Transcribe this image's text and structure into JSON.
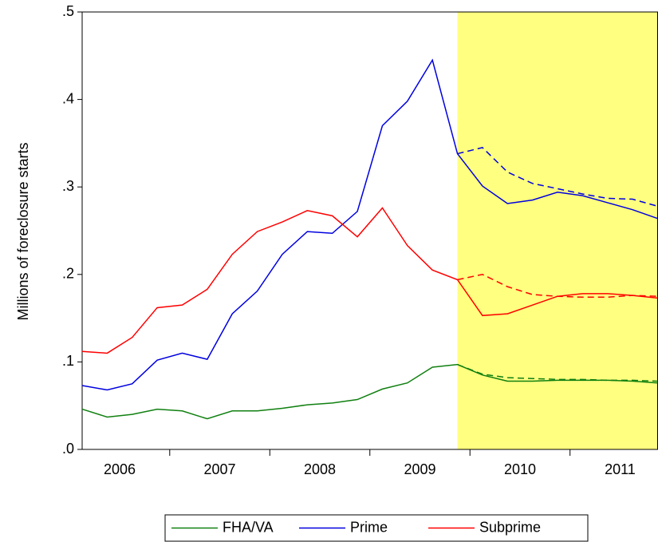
{
  "chart_data": {
    "type": "line",
    "y_label": "Millions of foreclosure starts",
    "categories": [
      null,
      "2006",
      null,
      null,
      null,
      "2007",
      null,
      null,
      null,
      "2008",
      null,
      null,
      null,
      "2009",
      null,
      null,
      null,
      "2010",
      null,
      null,
      null,
      "2011",
      null,
      null
    ],
    "ylim": [
      0,
      0.5
    ],
    "yticks": [
      {
        "value": 0,
        "label": ".0"
      },
      {
        "value": 0.1,
        "label": ".1"
      },
      {
        "value": 0.2,
        "label": ".2"
      },
      {
        "value": 0.3,
        "label": ".3"
      },
      {
        "value": 0.4,
        "label": ".4"
      },
      {
        "value": 0.5,
        "label": ".5"
      }
    ],
    "shade_color": "#ffff80",
    "series": [
      {
        "name": "FHA/VA",
        "color": "#108010",
        "values": [
          0.046,
          0.037,
          0.04,
          0.046,
          0.044,
          0.035,
          0.044,
          0.044,
          0.047,
          0.051,
          0.053,
          0.057,
          0.069,
          0.076,
          0.094,
          0.097,
          0.085,
          0.078,
          0.078,
          0.079,
          0.079,
          0.079,
          0.078,
          0.076
        ],
        "forecast_values": [
          null,
          null,
          null,
          null,
          null,
          null,
          null,
          null,
          null,
          null,
          null,
          null,
          null,
          null,
          null,
          0.097,
          0.086,
          0.082,
          0.081,
          0.08,
          0.08,
          0.079,
          0.079,
          0.078
        ]
      },
      {
        "name": "Prime",
        "color": "#0000e0",
        "values": [
          0.073,
          0.068,
          0.075,
          0.102,
          0.11,
          0.103,
          0.155,
          0.181,
          0.223,
          0.249,
          0.247,
          0.272,
          0.37,
          0.398,
          0.445,
          0.338,
          0.301,
          0.281,
          0.285,
          0.294,
          0.29,
          0.282,
          0.274,
          0.264
        ],
        "forecast_values": [
          null,
          null,
          null,
          null,
          null,
          null,
          null,
          null,
          null,
          null,
          null,
          null,
          null,
          null,
          null,
          0.338,
          0.345,
          0.317,
          0.304,
          0.298,
          0.292,
          0.287,
          0.286,
          0.278
        ]
      },
      {
        "name": "Subprime",
        "color": "#ff0000",
        "values": [
          0.112,
          0.11,
          0.128,
          0.162,
          0.165,
          0.183,
          0.223,
          0.249,
          0.26,
          0.273,
          0.267,
          0.243,
          0.276,
          0.233,
          0.205,
          0.194,
          0.153,
          0.155,
          0.165,
          0.175,
          0.178,
          0.178,
          0.176,
          0.173
        ],
        "forecast_values": [
          null,
          null,
          null,
          null,
          null,
          null,
          null,
          null,
          null,
          null,
          null,
          null,
          null,
          null,
          null,
          0.194,
          0.2,
          0.186,
          0.177,
          0.175,
          0.174,
          0.174,
          0.176,
          0.175
        ]
      }
    ]
  }
}
